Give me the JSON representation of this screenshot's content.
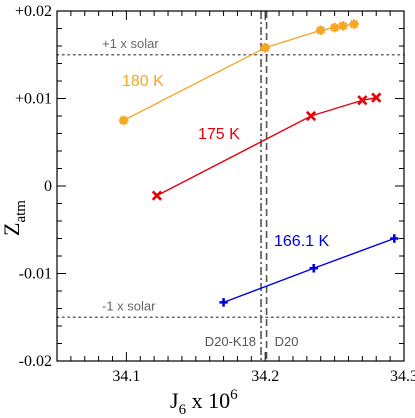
{
  "chart_data": {
    "type": "line",
    "xlabel": "J6 x 10^6",
    "ylabel": "Zatm",
    "xlabel_main": "J",
    "xlabel_sub": "6",
    "xlabel_rest": " x 10",
    "xlabel_sup": "6",
    "ylabel_main": "Z",
    "ylabel_sub": "atm",
    "xlim": [
      34.05,
      34.3
    ],
    "ylim": [
      -0.02,
      0.02
    ],
    "x_ticks": [
      34.1,
      34.2,
      34.3
    ],
    "x_tick_labels": [
      "34.1",
      "34.2",
      "34.3"
    ],
    "y_ticks": [
      -0.02,
      -0.01,
      0,
      0.01,
      0.02
    ],
    "y_tick_labels": [
      "-0.02",
      "-0.01",
      "0",
      "+0.01",
      "+0.02"
    ],
    "grid": false,
    "series": [
      {
        "name": "180 K",
        "color": "#f5a623",
        "marker": "asterisk",
        "x": [
          34.098,
          34.2,
          34.24,
          34.25,
          34.256,
          34.264
        ],
        "y": [
          0.0075,
          0.0158,
          0.0178,
          0.0181,
          0.0183,
          0.0185
        ]
      },
      {
        "name": "175 K",
        "color": "#e8000b",
        "marker": "x",
        "x": [
          34.122,
          34.233,
          34.27,
          34.28
        ],
        "y": [
          -0.0011,
          0.008,
          0.0098,
          0.0101
        ]
      },
      {
        "name": "166.1 K",
        "color": "#0000dd",
        "marker": "plus",
        "x": [
          34.17,
          34.235,
          34.293
        ],
        "y": [
          -0.0133,
          -0.0094,
          -0.006
        ]
      }
    ],
    "annotations": [
      {
        "text": "+1 x solar",
        "y": 0.015,
        "style": "dotted-line"
      },
      {
        "text": "-1 x solar",
        "y": -0.015,
        "style": "dotted-line"
      },
      {
        "text": "D20-K18",
        "x": 34.197,
        "style": "dashdot-line"
      },
      {
        "text": "D20",
        "x": 34.201,
        "style": "dashed-line"
      }
    ]
  }
}
